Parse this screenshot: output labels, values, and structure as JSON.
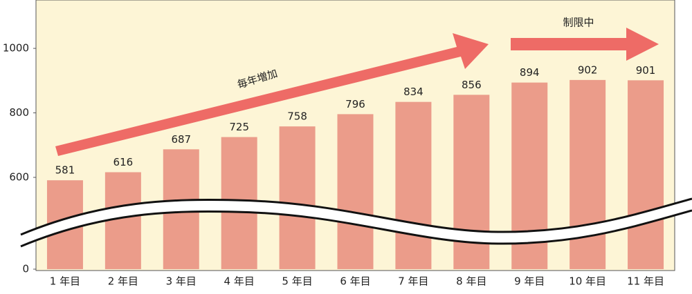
{
  "chart_data": {
    "type": "bar",
    "categories": [
      "1 年目",
      "2 年目",
      "3 年目",
      "4 年目",
      "5 年目",
      "6 年目",
      "7 年目",
      "8 年目",
      "9 年目",
      "10 年目",
      "11 年目"
    ],
    "values": [
      581,
      616,
      687,
      725,
      758,
      796,
      834,
      856,
      894,
      902,
      901
    ],
    "color": "#eb9c8a",
    "ylim": [
      0,
      1150
    ],
    "yticks": [
      0,
      600,
      800,
      1000
    ],
    "axis_break": true,
    "annotations": [
      "毎年増加",
      "制限中"
    ]
  }
}
